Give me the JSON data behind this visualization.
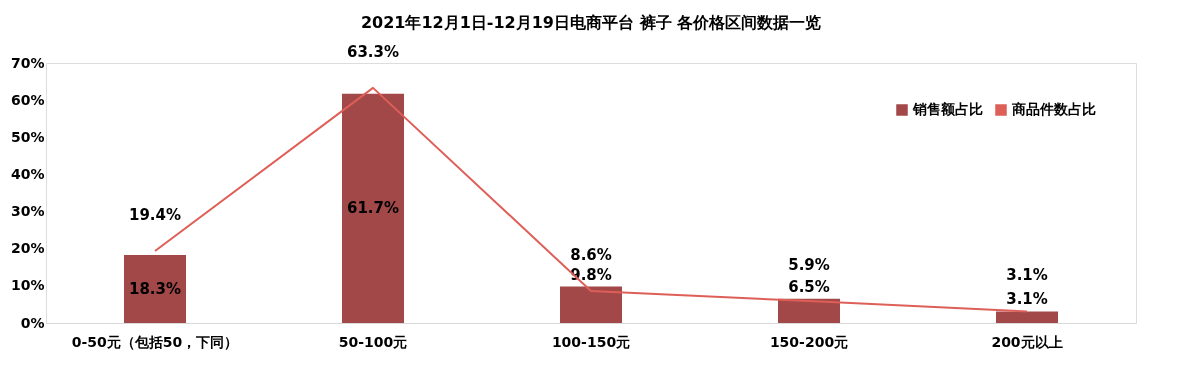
{
  "chart_data": {
    "type": "bar",
    "title": "2021年12月1日-12月19日电商平台 裤子 各价格区间数据一览",
    "categories": [
      "0-50元（包括50，下同）",
      "50-100元",
      "100-150元",
      "150-200元",
      "200元以上"
    ],
    "series": [
      {
        "name": "销售额占比",
        "color": "#a24848",
        "values": [
          18.3,
          61.7,
          9.8,
          6.5,
          3.1
        ]
      },
      {
        "name": "商品件数占比",
        "type": "line",
        "color": "#de5f58",
        "values": [
          19.4,
          63.3,
          8.6,
          5.9,
          3.1
        ]
      }
    ],
    "ylim": [
      0,
      70
    ],
    "yticks": [
      {
        "value": 0,
        "label": "0%"
      },
      {
        "value": 10,
        "label": "10%"
      },
      {
        "value": 20,
        "label": "20%"
      },
      {
        "value": 30,
        "label": "30%"
      },
      {
        "value": 40,
        "label": "40%"
      },
      {
        "value": 50,
        "label": "50%"
      },
      {
        "value": 60,
        "label": "60%"
      },
      {
        "value": 70,
        "label": "70%"
      }
    ],
    "value_labels": [
      [
        "18.3%",
        "61.7%",
        "9.8%",
        "6.5%",
        "3.1%"
      ],
      [
        "19.4%",
        "63.3%",
        "8.6%",
        "5.9%",
        "3.1%"
      ]
    ],
    "grid": false,
    "legend": "top right"
  }
}
